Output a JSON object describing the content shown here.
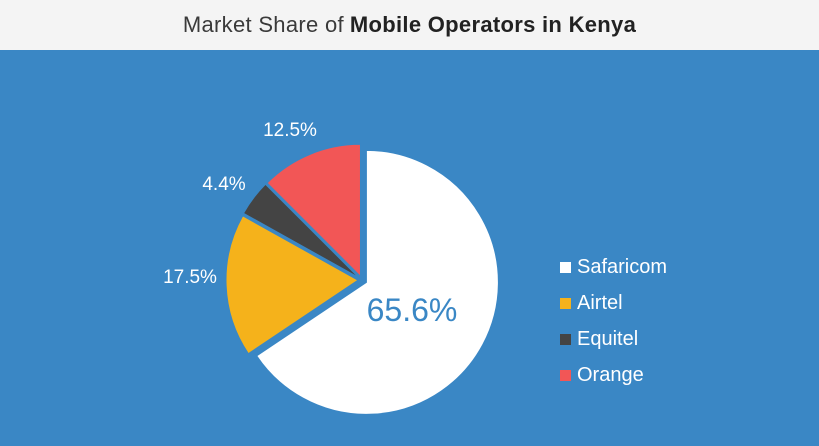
{
  "title": {
    "light": "Market Share of",
    "bold": "Mobile Operators in Kenya"
  },
  "chart_data": {
    "type": "pie",
    "title": "Market Share of Mobile Operators in Kenya",
    "categories": [
      "Safaricom",
      "Airtel",
      "Equitel",
      "Orange"
    ],
    "values": [
      65.6,
      17.5,
      4.4,
      12.5
    ],
    "labels": [
      "65.6%",
      "17.5%",
      "4.4%",
      "12.5%"
    ],
    "colors": [
      "#ffffff",
      "#f5b21b",
      "#444444",
      "#f25656"
    ],
    "legend_position": "right",
    "start_angle": "top, clockwise",
    "exploded": true
  },
  "legend": [
    {
      "label": "Safaricom",
      "color": "#ffffff"
    },
    {
      "label": "Airtel",
      "color": "#f5b21b"
    },
    {
      "label": "Equitel",
      "color": "#444444"
    },
    {
      "label": "Orange",
      "color": "#f25656"
    }
  ]
}
